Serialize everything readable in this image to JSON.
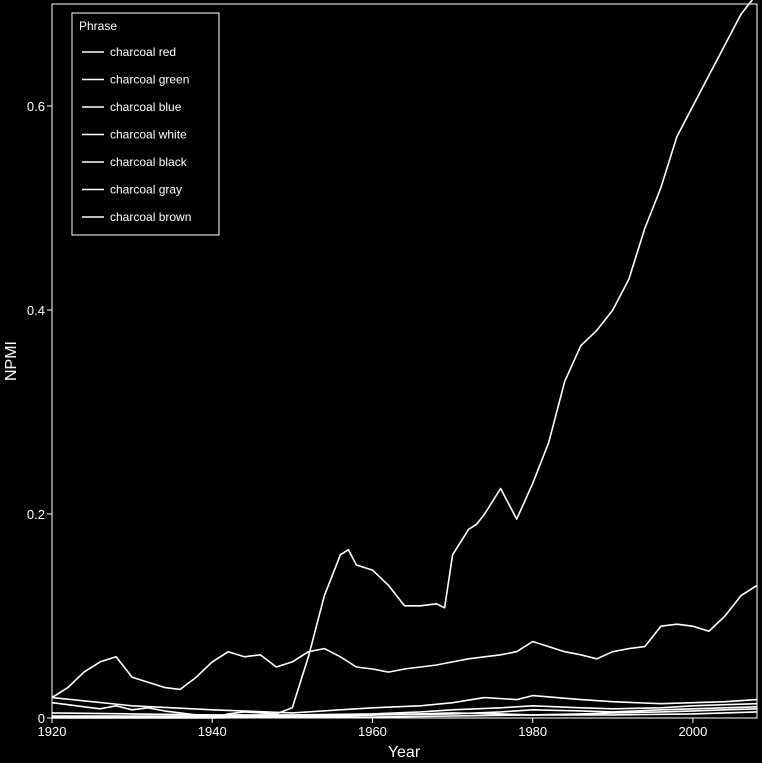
{
  "colors": {
    "background": "#000000",
    "foreground": "#ffffff"
  },
  "chart_data": {
    "type": "line",
    "xlabel": "Year",
    "ylabel": "NPMI",
    "xlim": [
      1920,
      2008
    ],
    "ylim": [
      0,
      0.7
    ],
    "xticks": [
      1920,
      1940,
      1960,
      1980,
      2000
    ],
    "yticks": [
      0,
      0.2,
      0.4,
      0.6
    ],
    "ytick_labels": [
      "0",
      "0.2",
      "0.4",
      "0.6"
    ],
    "grid": false,
    "legend": {
      "title": "Phrase",
      "placement": "top-left"
    },
    "series": [
      {
        "name": "charcoal red",
        "x": [
          1920,
          1922,
          1924,
          1926,
          1928,
          1930,
          1932,
          1934,
          1936,
          1938,
          1940,
          1942,
          1944,
          1946,
          1948,
          1950,
          1952,
          1954,
          1956,
          1957,
          1958,
          1960,
          1962,
          1964,
          1966,
          1968,
          1969,
          1970,
          1972,
          1973,
          1974,
          1976,
          1978,
          1980,
          1982,
          1984,
          1986,
          1988,
          1990,
          1992,
          1994,
          1995,
          1996,
          1998,
          2000,
          2002,
          2004,
          2006,
          2008
        ],
        "y": [
          0.015,
          0.013,
          0.011,
          0.009,
          0.012,
          0.008,
          0.01,
          0.007,
          0.005,
          0.003,
          0,
          0.004,
          0.006,
          0.005,
          0.004,
          0.01,
          0.06,
          0.12,
          0.16,
          0.165,
          0.15,
          0.145,
          0.13,
          0.11,
          0.11,
          0.112,
          0.108,
          0.16,
          0.185,
          0.19,
          0.2,
          0.225,
          0.195,
          0.23,
          0.27,
          0.33,
          0.365,
          0.38,
          0.4,
          0.43,
          0.48,
          0.5,
          0.52,
          0.57,
          0.6,
          0.63,
          0.66,
          0.69,
          0.71
        ]
      },
      {
        "name": "charcoal green",
        "x": [
          1920,
          1922,
          1924,
          1926,
          1928,
          1930,
          1932,
          1934,
          1936,
          1938,
          1940,
          1942,
          1944,
          1946,
          1948,
          1950,
          1952,
          1954,
          1956,
          1958,
          1960,
          1962,
          1964,
          1966,
          1968,
          1970,
          1972,
          1974,
          1976,
          1978,
          1980,
          1982,
          1984,
          1986,
          1988,
          1990,
          1992,
          1994,
          1996,
          1998,
          2000,
          2002,
          2004,
          2006,
          2008
        ],
        "y": [
          0.02,
          0.03,
          0.045,
          0.055,
          0.06,
          0.04,
          0.035,
          0.03,
          0.028,
          0.04,
          0.055,
          0.065,
          0.06,
          0.062,
          0.05,
          0.055,
          0.065,
          0.068,
          0.06,
          0.05,
          0.048,
          0.045,
          0.048,
          0.05,
          0.052,
          0.055,
          0.058,
          0.06,
          0.062,
          0.065,
          0.075,
          0.07,
          0.065,
          0.062,
          0.058,
          0.065,
          0.068,
          0.07,
          0.09,
          0.092,
          0.09,
          0.085,
          0.1,
          0.12,
          0.13
        ]
      },
      {
        "name": "charcoal blue",
        "x": [
          1920,
          1930,
          1940,
          1950,
          1956,
          1960,
          1966,
          1970,
          1974,
          1978,
          1980,
          1986,
          1990,
          1996,
          2000,
          2004,
          2008
        ],
        "y": [
          0.02,
          0.012,
          0.008,
          0.005,
          0.008,
          0.01,
          0.012,
          0.015,
          0.02,
          0.018,
          0.022,
          0.018,
          0.016,
          0.014,
          0.015,
          0.016,
          0.018
        ]
      },
      {
        "name": "charcoal white",
        "x": [
          1920,
          1930,
          1940,
          1950,
          1960,
          1966,
          1970,
          1976,
          1980,
          1986,
          1990,
          1996,
          2000,
          2004,
          2008
        ],
        "y": [
          0.005,
          0.004,
          0.003,
          0.003,
          0.004,
          0.006,
          0.008,
          0.01,
          0.012,
          0.01,
          0.009,
          0.01,
          0.012,
          0.013,
          0.014
        ]
      },
      {
        "name": "charcoal black",
        "x": [
          1920,
          1930,
          1940,
          1950,
          1960,
          1970,
          1976,
          1980,
          1986,
          1990,
          1996,
          2000,
          2004,
          2008
        ],
        "y": [
          0.002,
          0.002,
          0.002,
          0.002,
          0.003,
          0.004,
          0.006,
          0.008,
          0.007,
          0.006,
          0.008,
          0.009,
          0.01,
          0.011
        ]
      },
      {
        "name": "charcoal gray",
        "x": [
          1920,
          1930,
          1940,
          1950,
          1956,
          1960,
          1966,
          1970,
          1976,
          1980,
          1986,
          1990,
          1996,
          2000,
          2004,
          2008
        ],
        "y": [
          0.001,
          0.001,
          0.001,
          0.001,
          0.002,
          0.003,
          0.004,
          0.005,
          0.004,
          0.003,
          0.004,
          0.005,
          0.006,
          0.007,
          0.008,
          0.009
        ]
      },
      {
        "name": "charcoal brown",
        "x": [
          1920,
          1930,
          1940,
          1950,
          1960,
          1970,
          1980,
          1990,
          2000,
          2004,
          2008
        ],
        "y": [
          0.0,
          0.0,
          0.0,
          0.001,
          0.001,
          0.002,
          0.003,
          0.003,
          0.004,
          0.005,
          0.006
        ]
      }
    ]
  }
}
